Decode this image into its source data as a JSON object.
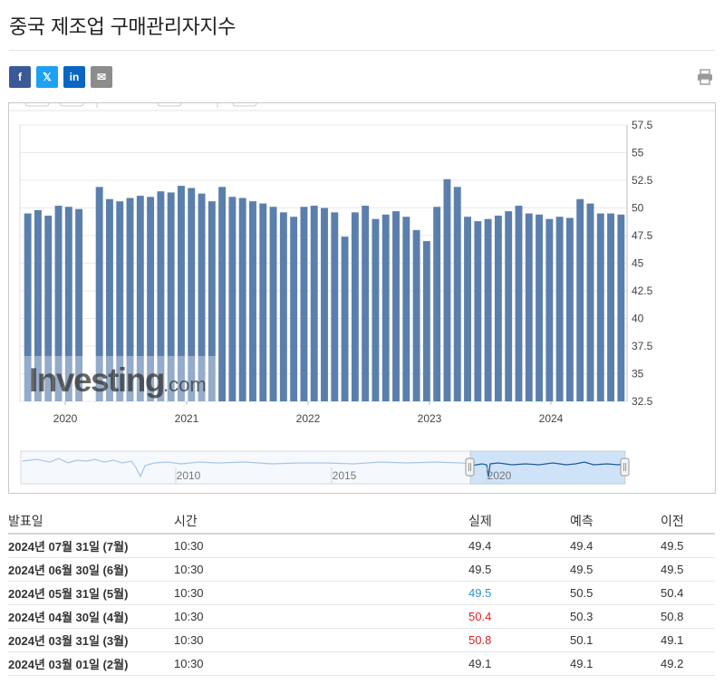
{
  "page": {
    "title": "중국 제조업 구매관리자지수"
  },
  "share": {
    "facebook": "f",
    "x": "𝕏",
    "linkedin": "in",
    "email": "✉"
  },
  "icons": {
    "print": "print-icon"
  },
  "colors": {
    "bar": "#5b7fad",
    "navigator_line": "#1f5a9e",
    "navigator_fill": "#cfe3f8",
    "higher": "#e02020",
    "lower": "#2796c9"
  },
  "chart_data": {
    "type": "bar",
    "yticks": [
      "57.5",
      "55",
      "52.5",
      "50",
      "47.5",
      "45",
      "42.5",
      "40",
      "37.5",
      "35",
      "32.5"
    ],
    "ylim": [
      32.5,
      57.5
    ],
    "xticks": [
      "2020",
      "2021",
      "2022",
      "2023",
      "2024"
    ],
    "navigator_ticks": [
      "2010",
      "2015",
      "2020"
    ],
    "watermark": "Investing.com",
    "series": [
      {
        "values": [
          49.5,
          49.8,
          49.3,
          50.2,
          50.1,
          49.9,
          null,
          51.9,
          50.8,
          50.6,
          50.9,
          51.1,
          51.0,
          51.5,
          51.4,
          52.0,
          51.8,
          51.3,
          50.6,
          51.9,
          51.0,
          50.9,
          50.6,
          50.4,
          50.1,
          49.6,
          49.2,
          50.1,
          50.2,
          50.0,
          49.6,
          47.4,
          49.6,
          50.2,
          49.0,
          49.4,
          49.7,
          49.2,
          48.0,
          47.0,
          50.1,
          52.6,
          51.9,
          49.2,
          48.8,
          49.0,
          49.3,
          49.7,
          50.2,
          49.5,
          49.4,
          49.0,
          49.2,
          49.1,
          50.8,
          50.4,
          49.5,
          49.5,
          49.4
        ]
      }
    ]
  },
  "table": {
    "headers": {
      "date": "발표일",
      "time": "시간",
      "actual": "실제",
      "forecast": "예측",
      "previous": "이전"
    },
    "rows": [
      {
        "date": "2024년 07월 31일 (7월)",
        "time": "10:30",
        "actual": "49.4",
        "forecast": "49.4",
        "previous": "49.5"
      },
      {
        "date": "2024년 06월 30일 (6월)",
        "time": "10:30",
        "actual": "49.5",
        "forecast": "49.5",
        "previous": "49.5"
      },
      {
        "date": "2024년 05월 31일 (5월)",
        "time": "10:30",
        "actual": "49.5",
        "forecast": "50.5",
        "previous": "50.4"
      },
      {
        "date": "2024년 04월 30일 (4월)",
        "time": "10:30",
        "actual": "50.4",
        "forecast": "50.3",
        "previous": "50.8"
      },
      {
        "date": "2024년 03월 31일 (3월)",
        "time": "10:30",
        "actual": "50.8",
        "forecast": "50.1",
        "previous": "49.1"
      },
      {
        "date": "2024년 03월 01일 (2월)",
        "time": "10:30",
        "actual": "49.1",
        "forecast": "49.1",
        "previous": "49.2"
      }
    ]
  }
}
